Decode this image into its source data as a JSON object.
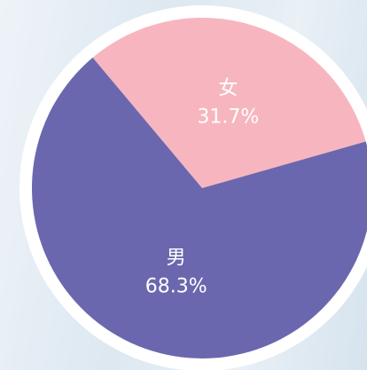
{
  "chart_data": {
    "type": "pie",
    "categories": [
      "女",
      "男"
    ],
    "values": [
      31.7,
      68.3
    ],
    "value_labels": [
      "31.7%",
      "68.3%"
    ],
    "colors": [
      "#f7b6bf",
      "#6b67ae"
    ]
  }
}
